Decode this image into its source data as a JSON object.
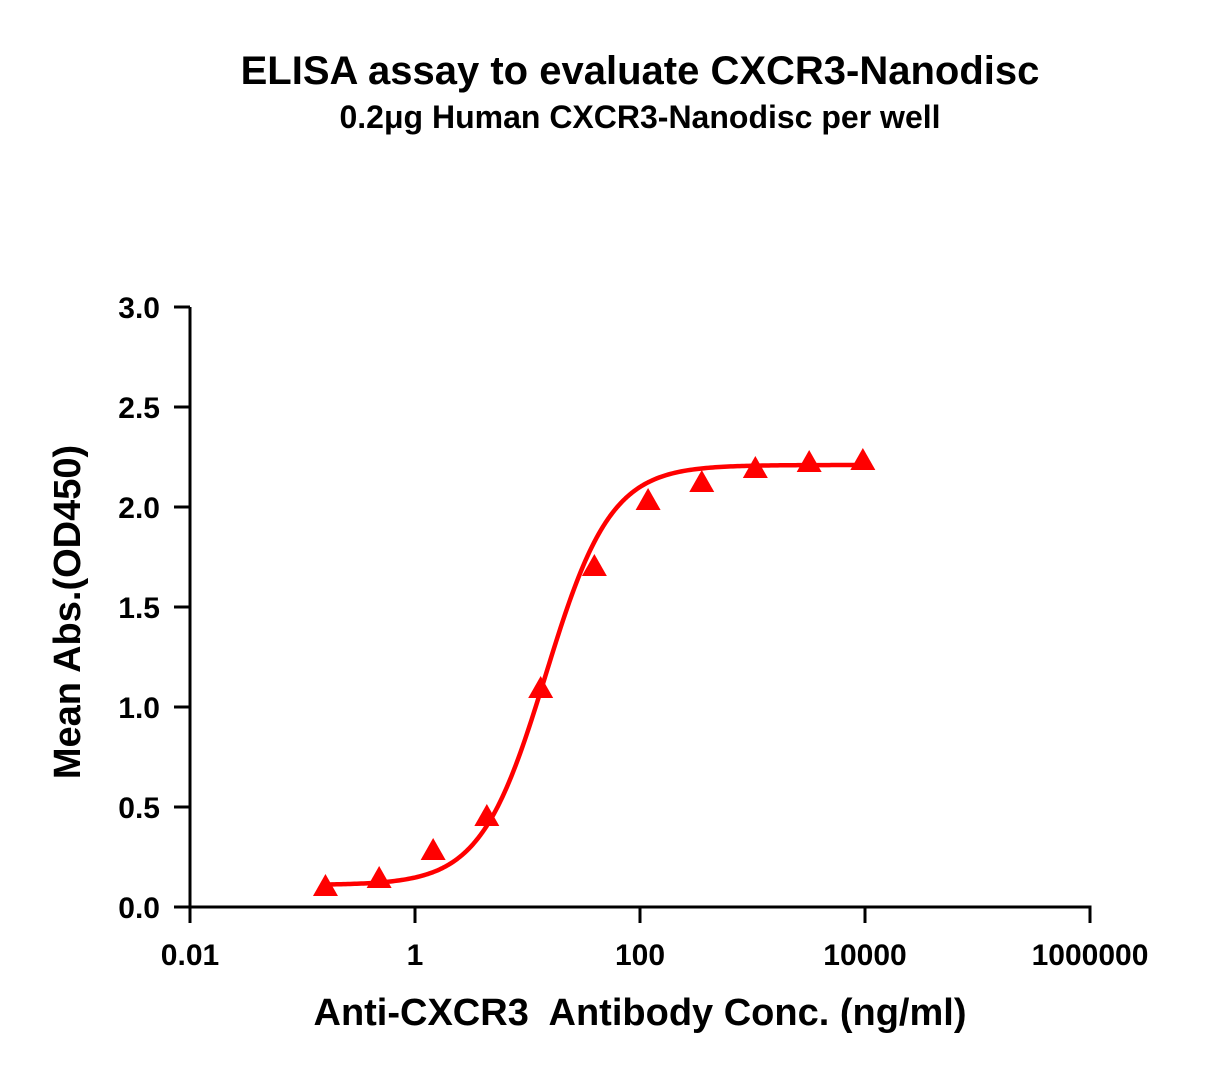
{
  "chart_data": {
    "type": "scatter",
    "title": "ELISA assay to evaluate CXCR3-Nanodisc",
    "subtitle": "0.2μg Human CXCR3-Nanodisc per well",
    "xlabel": "Anti-CXCR3  Antibody Conc. (ng/ml)",
    "ylabel": "Mean Abs.(OD450)",
    "x_scale": "log",
    "xlim": [
      0.01,
      1000000
    ],
    "ylim": [
      0,
      3.0
    ],
    "x_ticks": [
      0.01,
      1,
      100,
      10000,
      1000000
    ],
    "x_tick_labels": [
      "0.01",
      "1",
      "100",
      "10000",
      "1000000"
    ],
    "y_ticks": [
      0,
      0.5,
      1.0,
      1.5,
      2.0,
      2.5,
      3.0
    ],
    "y_tick_labels": [
      "0.0",
      "0.5",
      "1.0",
      "1.5",
      "2.0",
      "2.5",
      "3.0"
    ],
    "grid": false,
    "legend": "none",
    "marker": "triangle",
    "color": "#ff0000",
    "fit": "4PL",
    "series": [
      {
        "x": [
          0.16,
          0.48,
          1.45,
          4.35,
          13.1,
          39.3,
          118,
          354,
          1060,
          3190,
          9570
        ],
        "y": [
          0.1,
          0.14,
          0.28,
          0.45,
          1.09,
          1.7,
          2.03,
          2.12,
          2.19,
          2.22,
          2.23
        ]
      }
    ],
    "fit_params": {
      "bottom": 0.11,
      "top": 2.21,
      "ec50": 14.5,
      "hill": 1.5
    }
  }
}
